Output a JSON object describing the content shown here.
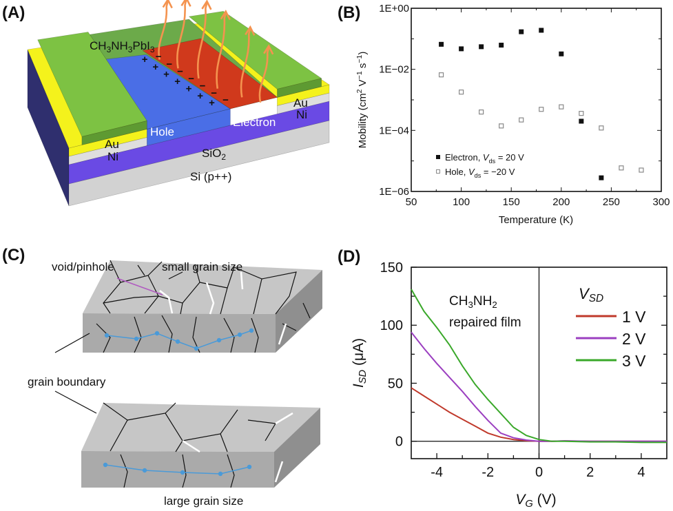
{
  "panels": {
    "a": {
      "letter": "(A)",
      "perovskite_label": [
        {
          "t": "CH"
        },
        {
          "t": "3",
          "sub": true
        },
        {
          "t": "NH"
        },
        {
          "t": "3",
          "sub": true
        },
        {
          "t": "PbI"
        },
        {
          "t": "3",
          "sub": true
        }
      ],
      "hole_label": "Hole",
      "electron_label": "Electron",
      "au_left": "Au",
      "ni_left": "Ni",
      "au_right": "Au",
      "ni_right": "Ni",
      "oxide_label": [
        {
          "t": "SiO"
        },
        {
          "t": "2",
          "sub": true
        }
      ],
      "substrate_label": "Si (p++)",
      "plus_sign": "+",
      "minus_sign": "−",
      "colors": {
        "au": "#f4f21c",
        "ni": "#dedede",
        "sio2": "#6a4ae4",
        "si": "#d2d2d2",
        "perovskite": "#6caa4a",
        "electrode_cover": "#7dc243",
        "hole": "#4a6ee6",
        "electron": "#d0391c",
        "arrow": "#f4934f"
      }
    },
    "b": {
      "letter": "(B)"
    },
    "c": {
      "letter": "(C)",
      "void_label": "void/pinhole",
      "small_label": "small grain size",
      "boundary_label": "grain boundary",
      "large_label": "large grain size",
      "colors": {
        "slab_top": "#c4c4c4",
        "slab_front": "#a9a9a9",
        "slab_side": "#8e8e8e",
        "carrier": "#4a9ad8",
        "void_arrow": "#b05ac0"
      }
    },
    "d": {
      "letter": "(D)"
    }
  },
  "chart_data": [
    {
      "type": "scatter",
      "xlabel": "Temperature (K)",
      "ylabel": [
        {
          "t": "Mobility (cm"
        },
        {
          "t": "2",
          "sup": true
        },
        {
          "t": " V"
        },
        {
          "t": "−1",
          "sup": true
        },
        {
          "t": " s"
        },
        {
          "t": "−1",
          "sup": true
        },
        {
          "t": ")"
        }
      ],
      "xlim": [
        50,
        300
      ],
      "ylim": [
        1e-06,
        1
      ],
      "yscale": "log",
      "xticks": [
        "50",
        "100",
        "150",
        "200",
        "250",
        "300"
      ],
      "yticks": [
        "1E+00",
        "1E−02",
        "1E−04",
        "1E−06"
      ],
      "legend_position": "bottom-left",
      "series": [
        {
          "name": [
            {
              "t": "Electron, "
            },
            {
              "t": "V",
              "it": true
            },
            {
              "t": "ds",
              "sub": true
            },
            {
              "t": " = 20 V"
            }
          ],
          "marker": "filled-square",
          "color": "#111111",
          "x": [
            80,
            100,
            120,
            140,
            160,
            180,
            200,
            220,
            240
          ],
          "y": [
            0.066,
            0.047,
            0.055,
            0.062,
            0.17,
            0.19,
            0.032,
            0.0002,
            2.8e-06
          ]
        },
        {
          "name": [
            {
              "t": "Hole, "
            },
            {
              "t": "V",
              "it": true
            },
            {
              "t": "ds",
              "sub": true
            },
            {
              "t": " = −20 V"
            }
          ],
          "marker": "open-square",
          "color": "#888888",
          "x": [
            80,
            100,
            120,
            140,
            160,
            180,
            200,
            220,
            240,
            260,
            280
          ],
          "y": [
            0.0066,
            0.0018,
            0.0004,
            0.00014,
            0.00022,
            0.00049,
            0.00059,
            0.00036,
            0.00012,
            5.9e-06,
            5e-06
          ]
        }
      ]
    },
    {
      "type": "line",
      "xlabel": [
        {
          "t": "V",
          "it": true
        },
        {
          "t": "G",
          "sub": true,
          "it": true
        },
        {
          "t": " (V)"
        }
      ],
      "ylabel": [
        {
          "t": "I",
          "it": true
        },
        {
          "t": "SD",
          "sub": true,
          "it": true
        },
        {
          "t": " (μA)"
        }
      ],
      "xlim": [
        -5,
        5
      ],
      "ylim": [
        -15,
        150
      ],
      "xticks": [
        "-4",
        "-2",
        "0",
        "2",
        "4"
      ],
      "yticks": [
        "0",
        "50",
        "100",
        "150"
      ],
      "annotation": [
        [
          {
            "t": "CH"
          },
          {
            "t": "3",
            "sub": true
          },
          {
            "t": "NH"
          },
          {
            "t": "2",
            "sub": true
          }
        ],
        [
          {
            "t": "repaired film"
          }
        ]
      ],
      "legend_title": [
        {
          "t": "V",
          "it": true
        },
        {
          "t": "SD",
          "sub": true,
          "it": true
        }
      ],
      "legend_position": "top-right",
      "x": [
        -5,
        -4.5,
        -4,
        -3.5,
        -3,
        -2.5,
        -2,
        -1.5,
        -1,
        -0.5,
        0,
        0.5,
        1,
        2,
        3,
        4,
        5
      ],
      "series": [
        {
          "name": "1 V",
          "color": "#c0392b",
          "y": [
            46,
            39,
            32,
            25,
            19,
            13,
            7,
            3.5,
            1.5,
            0.5,
            0,
            0,
            0.3,
            0,
            0,
            0,
            0
          ]
        },
        {
          "name": "2 V",
          "color": "#9b3fc0",
          "y": [
            94,
            80,
            67,
            55,
            43,
            30,
            18,
            7,
            3,
            1,
            0,
            0,
            0.4,
            0,
            0,
            0,
            0
          ]
        },
        {
          "name": "3 V",
          "color": "#3aa82a",
          "y": [
            131,
            112,
            98,
            83,
            65,
            49,
            36,
            24,
            12,
            5,
            1.5,
            0,
            0,
            -0.5,
            -0.5,
            -1,
            -1
          ]
        }
      ]
    }
  ]
}
